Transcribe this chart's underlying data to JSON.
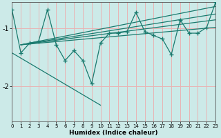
{
  "xlabel": "Humidex (Indice chaleur)",
  "ylabel": "",
  "bg_color": "#cceae8",
  "grid_color": "#e8b4b4",
  "line_color": "#1a7a6e",
  "xlim": [
    0,
    23
  ],
  "ylim": [
    -2.6,
    -0.55
  ],
  "yticks": [
    -2,
    -1
  ],
  "xticks": [
    0,
    1,
    2,
    3,
    4,
    5,
    6,
    7,
    8,
    9,
    10,
    11,
    12,
    13,
    14,
    15,
    16,
    17,
    18,
    19,
    20,
    21,
    22,
    23
  ],
  "zigzag_x": [
    0,
    1,
    2,
    3,
    4,
    5,
    6,
    7,
    8,
    9,
    10,
    11,
    12,
    13,
    14,
    15,
    16,
    17,
    18,
    19,
    20,
    21,
    22,
    23
  ],
  "zigzag_y": [
    -0.68,
    -1.42,
    -1.25,
    -1.22,
    -0.68,
    -1.28,
    -1.55,
    -1.38,
    -1.55,
    -1.95,
    -1.25,
    -1.08,
    -1.08,
    -1.05,
    -0.72,
    -1.05,
    -1.12,
    -1.18,
    -1.45,
    -0.85,
    -1.08,
    -1.08,
    -0.98,
    -0.55
  ],
  "trend_lines": [
    {
      "x": [
        1,
        23
      ],
      "y": [
        -1.28,
        -0.62
      ]
    },
    {
      "x": [
        1,
        23
      ],
      "y": [
        -1.28,
        -0.75
      ]
    },
    {
      "x": [
        1,
        23
      ],
      "y": [
        -1.28,
        -0.85
      ]
    },
    {
      "x": [
        1,
        23
      ],
      "y": [
        -1.28,
        -0.98
      ]
    }
  ],
  "low_line": {
    "x": [
      0,
      10
    ],
    "y": [
      -1.42,
      -2.32
    ]
  }
}
